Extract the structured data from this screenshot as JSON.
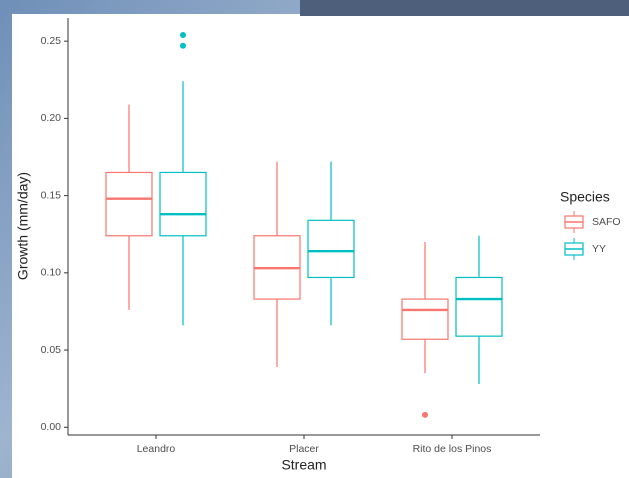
{
  "chart_data": {
    "type": "boxplot",
    "x_label": "Stream",
    "y_label": "Growth (mm/day)",
    "legend_title": "Species",
    "legend_position": "right",
    "categories": [
      "Leandro",
      "Placer",
      "Rito de los Pinos"
    ],
    "ylim": [
      -0.005,
      0.265
    ],
    "yticks": [
      {
        "value": 0,
        "label": "0.00"
      },
      0.05,
      {
        "value": 0.1,
        "label": "0.10"
      },
      0.15,
      {
        "value": 0.2,
        "label": "0.20"
      },
      0.25
    ],
    "grid": false,
    "series": [
      {
        "name": "SAFO",
        "color": "#F8766D",
        "min": [
          0.076,
          0.039,
          0.035
        ],
        "q1": [
          0.124,
          0.083,
          0.057
        ],
        "median": [
          0.148,
          0.103,
          0.076
        ],
        "q3": [
          0.165,
          0.124,
          0.083
        ],
        "max": [
          0.209,
          0.172,
          0.12
        ],
        "outliers": [
          [],
          [],
          [
            0.008
          ]
        ]
      },
      {
        "name": "YY",
        "color": "#00BFC4",
        "min": [
          0.066,
          0.066,
          0.028
        ],
        "q1": [
          0.124,
          0.097,
          0.059
        ],
        "median": [
          0.138,
          0.114,
          0.083
        ],
        "q3": [
          0.165,
          0.134,
          0.097
        ],
        "max": [
          0.224,
          0.172,
          0.124
        ],
        "outliers": [
          [
            0.254,
            0.247
          ],
          [],
          []
        ]
      }
    ]
  }
}
